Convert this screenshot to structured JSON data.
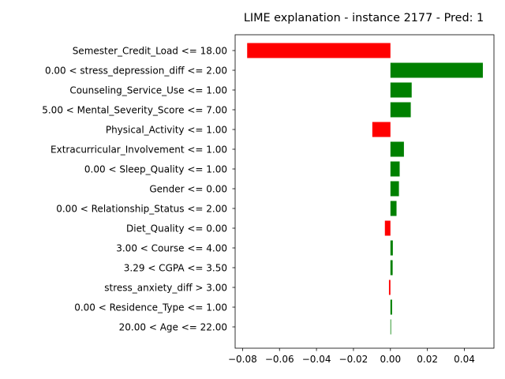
{
  "chart_data": {
    "type": "bar",
    "orientation": "horizontal",
    "title": "LIME explanation - instance 2177 - Pred: 1",
    "xlabel": "",
    "ylabel": "",
    "xlim": [
      -0.084,
      0.056
    ],
    "xticks": [
      -0.08,
      -0.06,
      -0.04,
      -0.02,
      0.0,
      0.02,
      0.04
    ],
    "xtick_labels": [
      "−0.08",
      "−0.06",
      "−0.04",
      "−0.02",
      "0.00",
      "0.02",
      "0.04"
    ],
    "grid": false,
    "legend": false,
    "positive_color": "#008000",
    "negative_color": "#ff0000",
    "categories": [
      "Semester_Credit_Load <= 18.00",
      "0.00 < stress_depression_diff <= 2.00",
      "Counseling_Service_Use <= 1.00",
      "5.00 < Mental_Severity_Score <= 7.00",
      "Physical_Activity <= 1.00",
      "Extracurricular_Involvement <= 1.00",
      "0.00 < Sleep_Quality <= 1.00",
      "Gender <= 0.00",
      "0.00 < Relationship_Status <= 2.00",
      "Diet_Quality <= 0.00",
      "3.00 < Course <= 4.00",
      "3.29 < CGPA <= 3.50",
      "stress_anxiety_diff > 3.00",
      "0.00 < Residence_Type <= 1.00",
      "20.00 < Age <= 22.00"
    ],
    "values": [
      -0.0775,
      0.05,
      0.0115,
      0.011,
      -0.0098,
      0.0073,
      0.005,
      0.0046,
      0.0033,
      -0.003,
      0.0013,
      0.0012,
      -0.0008,
      0.0009,
      0.0003
    ]
  }
}
